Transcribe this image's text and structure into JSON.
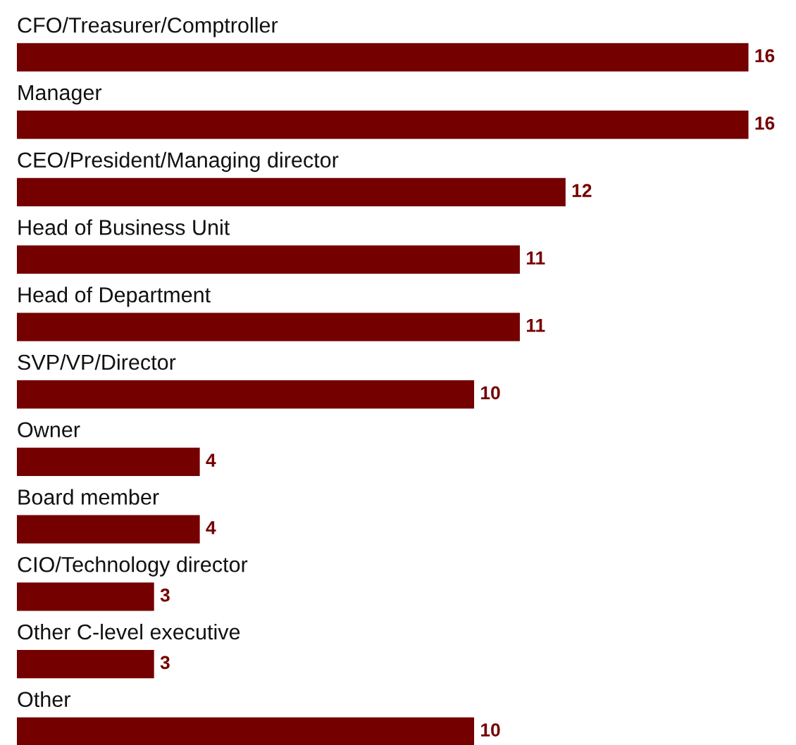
{
  "chart_data": {
    "type": "bar",
    "orientation": "horizontal",
    "categories": [
      "CFO/Treasurer/Comptroller",
      "Manager",
      "CEO/President/Managing director",
      "Head of Business Unit",
      "Head of Department",
      "SVP/VP/Director",
      "Owner",
      "Board member",
      "CIO/Technology director",
      "Other C-level executive",
      "Other"
    ],
    "values": [
      16,
      16,
      12,
      11,
      11,
      10,
      4,
      4,
      3,
      3,
      10
    ],
    "color": "#750000",
    "data_labels": true
  }
}
